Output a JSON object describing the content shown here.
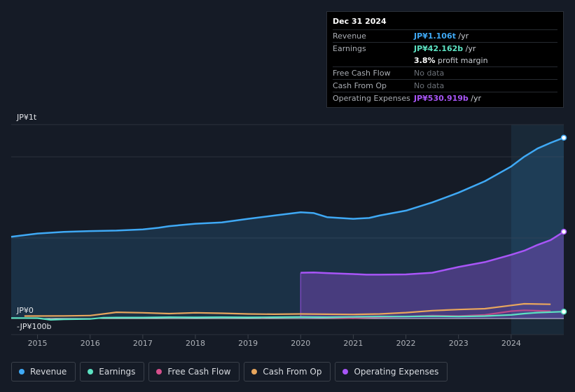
{
  "tooltip": {
    "date": "Dec 31 2024",
    "rows": [
      {
        "label": "Revenue",
        "value": "JP¥1.106t",
        "unit": " /yr",
        "color": "#3fa9f5"
      },
      {
        "label": "Earnings",
        "value": "JP¥42.162b",
        "unit": " /yr",
        "color": "#5ce2c2"
      },
      {
        "label": "",
        "value": "3.8%",
        "unit": " profit margin",
        "color": "#ffffff"
      },
      {
        "label": "Free Cash Flow",
        "value": "No data",
        "unit": "",
        "color": "#6c7178"
      },
      {
        "label": "Cash From Op",
        "value": "No data",
        "unit": "",
        "color": "#6c7178"
      },
      {
        "label": "Operating Expenses",
        "value": "JP¥530.919b",
        "unit": " /yr",
        "color": "#a855f7"
      }
    ]
  },
  "legend": [
    {
      "label": "Revenue",
      "color": "#3fa9f5"
    },
    {
      "label": "Earnings",
      "color": "#5ce2c2"
    },
    {
      "label": "Free Cash Flow",
      "color": "#d64f8c"
    },
    {
      "label": "Cash From Op",
      "color": "#e8a65d"
    },
    {
      "label": "Operating Expenses",
      "color": "#a855f7"
    }
  ],
  "chart_data": {
    "type": "line",
    "title": "",
    "xlabel": "",
    "ylabel": "",
    "y_axis_labels": [
      "JP¥1t",
      "JP¥0",
      "-JP¥100b"
    ],
    "x_ticks": [
      "2015",
      "2016",
      "2017",
      "2018",
      "2019",
      "2020",
      "2021",
      "2022",
      "2023",
      "2024"
    ],
    "xlim": [
      2014.5,
      2025.0
    ],
    "ylim": [
      -100,
      1200
    ],
    "units": "JP¥ billions",
    "highlight_from": 2024.0,
    "series": [
      {
        "name": "Revenue",
        "color": "#3fa9f5",
        "fill": true,
        "x": [
          2014.5,
          2015.0,
          2015.5,
          2016.0,
          2016.5,
          2017.0,
          2017.3,
          2017.5,
          2018.0,
          2018.5,
          2019.0,
          2019.5,
          2020.0,
          2020.25,
          2020.5,
          2021.0,
          2021.3,
          2021.5,
          2022.0,
          2022.5,
          2023.0,
          2023.5,
          2024.0,
          2024.25,
          2024.5,
          2024.75,
          2025.0
        ],
        "y": [
          500,
          520,
          530,
          535,
          538,
          545,
          555,
          565,
          580,
          588,
          610,
          630,
          650,
          645,
          620,
          610,
          615,
          630,
          660,
          710,
          770,
          840,
          930,
          990,
          1040,
          1075,
          1106
        ]
      },
      {
        "name": "Operating Expenses",
        "color": "#a855f7",
        "fill": true,
        "x": [
          2020.0,
          2020.25,
          2020.5,
          2021.0,
          2021.25,
          2021.5,
          2022.0,
          2022.5,
          2023.0,
          2023.5,
          2024.0,
          2024.25,
          2024.5,
          2024.75,
          2025.0
        ],
        "y": [
          280,
          282,
          278,
          272,
          268,
          268,
          270,
          280,
          315,
          345,
          390,
          415,
          450,
          480,
          531
        ]
      },
      {
        "name": "Cash From Op",
        "color": "#e8a65d",
        "fill": false,
        "x": [
          2014.75,
          2015.5,
          2016.0,
          2016.5,
          2017.0,
          2017.5,
          2018.0,
          2018.5,
          2019.0,
          2019.5,
          2020.0,
          2020.5,
          2021.0,
          2021.5,
          2022.0,
          2022.5,
          2023.0,
          2023.5,
          2024.0,
          2024.25,
          2024.75
        ],
        "y": [
          15,
          16,
          18,
          38,
          35,
          30,
          35,
          32,
          28,
          26,
          28,
          26,
          25,
          28,
          36,
          48,
          55,
          60,
          80,
          90,
          87
        ]
      },
      {
        "name": "Free Cash Flow",
        "color": "#d64f8c",
        "fill": false,
        "x": [
          2019.25,
          2019.5,
          2020.0,
          2020.5,
          2021.0,
          2021.5,
          2022.0,
          2022.5,
          2023.0,
          2023.5,
          2024.0,
          2024.25,
          2024.75
        ],
        "y": [
          5,
          8,
          10,
          6,
          2,
          8,
          12,
          18,
          15,
          22,
          45,
          50,
          45
        ]
      },
      {
        "name": "Earnings",
        "color": "#5ce2c2",
        "fill": false,
        "x": [
          2014.5,
          2015.0,
          2015.25,
          2015.5,
          2016.0,
          2016.25,
          2016.5,
          2017.0,
          2017.5,
          2018.0,
          2018.5,
          2019.0,
          2019.5,
          2020.0,
          2020.5,
          2021.0,
          2021.5,
          2022.0,
          2022.5,
          2023.0,
          2023.5,
          2024.0,
          2024.25,
          2024.5,
          2025.0
        ],
        "y": [
          3,
          2,
          -8,
          -5,
          -3,
          5,
          6,
          6,
          8,
          7,
          8,
          7,
          8,
          9,
          8,
          10,
          12,
          12,
          14,
          12,
          15,
          22,
          30,
          36,
          42
        ]
      }
    ]
  }
}
